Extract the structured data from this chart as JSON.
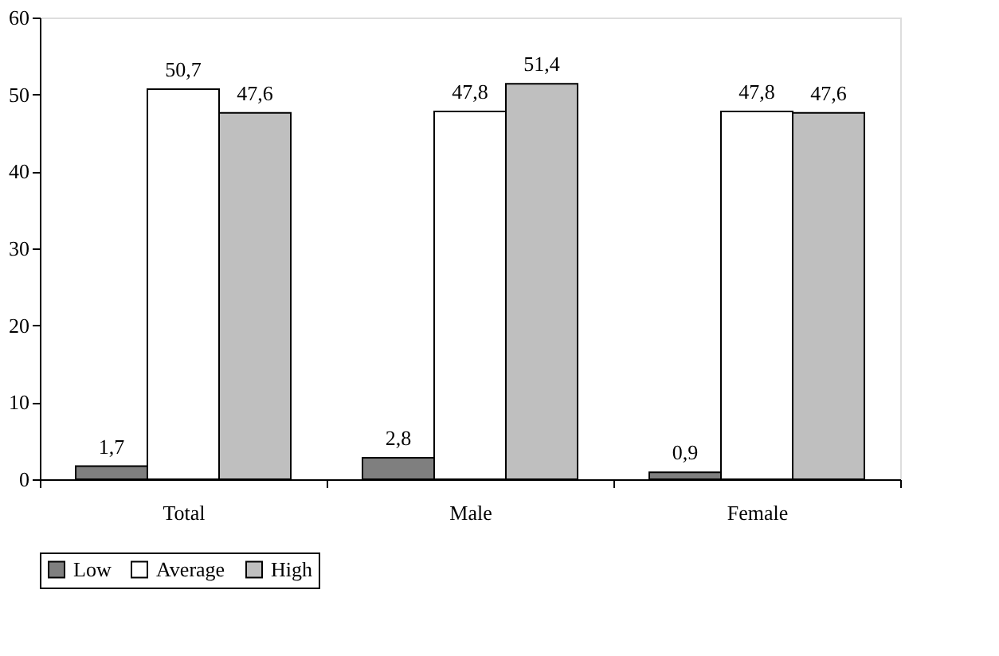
{
  "chart_data": {
    "type": "bar",
    "categories": [
      "Total",
      "Male",
      "Female"
    ],
    "series": [
      {
        "name": "Low",
        "color": "#7f7f7f",
        "values": [
          1.7,
          2.8,
          0.9
        ],
        "value_labels": [
          "1,7",
          "2,8",
          "0,9"
        ]
      },
      {
        "name": "Average",
        "color": "#ffffff",
        "values": [
          50.7,
          47.8,
          47.8
        ],
        "value_labels": [
          "50,7",
          "47,8",
          "47,8"
        ]
      },
      {
        "name": "High",
        "color": "#bfbfbf",
        "values": [
          47.6,
          51.4,
          47.6
        ],
        "value_labels": [
          "47,6",
          "51,4",
          "47,6"
        ]
      }
    ],
    "ylim": [
      0,
      60
    ],
    "yticks": [
      0,
      10,
      20,
      30,
      40,
      50,
      60
    ],
    "grid": false,
    "legend": "bottom"
  }
}
